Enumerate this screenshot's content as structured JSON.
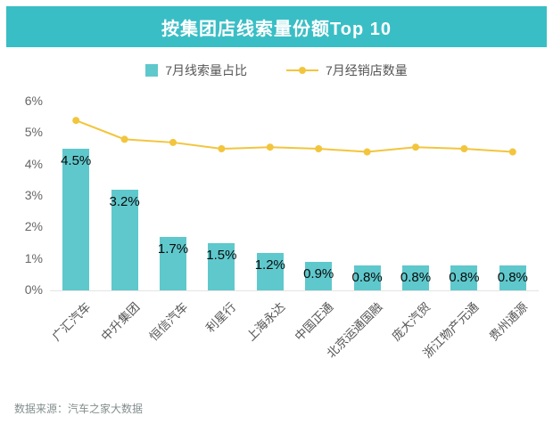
{
  "title": "按集团店线索量份额Top 10",
  "legend": {
    "bar_label": "7月线索量占比",
    "line_label": "7月经销店数量"
  },
  "source": "数据来源：汽车之家大数据",
  "colors": {
    "banner": "#3abec5",
    "bar": "#5fc8cc",
    "line": "#f2c53d",
    "axis_text": "#666666",
    "bar_label_text": "#0a0a0a"
  },
  "chart_data": {
    "type": "bar",
    "combo": "bar+line",
    "title": "按集团店线索量份额Top 10",
    "categories": [
      "广汇汽车",
      "中升集团",
      "恒信汽车",
      "利星行",
      "上海永达",
      "中国正通",
      "北京运通国融",
      "庞大汽贸",
      "浙江物产元通",
      "贵州通源"
    ],
    "series": [
      {
        "name": "7月线索量占比",
        "type": "bar",
        "values": [
          4.5,
          3.2,
          1.7,
          1.5,
          1.2,
          0.9,
          0.8,
          0.8,
          0.8,
          0.8
        ],
        "labels": [
          "4.5%",
          "3.2%",
          "1.7%",
          "1.5%",
          "1.2%",
          "0.9%",
          "0.8%",
          "0.8%",
          "0.8%",
          "0.8%"
        ]
      },
      {
        "name": "7月经销店数量",
        "type": "line",
        "values_on_left_pct_axis": [
          5.4,
          4.8,
          4.7,
          4.5,
          4.55,
          4.5,
          4.4,
          4.55,
          4.5,
          4.4
        ]
      }
    ],
    "xlabel": "",
    "ylabel": "",
    "ylabel_ticks": [
      "0%",
      "1%",
      "2%",
      "3%",
      "4%",
      "5%",
      "6%"
    ],
    "ylim": [
      0,
      6
    ],
    "grid": false,
    "legend_position": "top"
  }
}
